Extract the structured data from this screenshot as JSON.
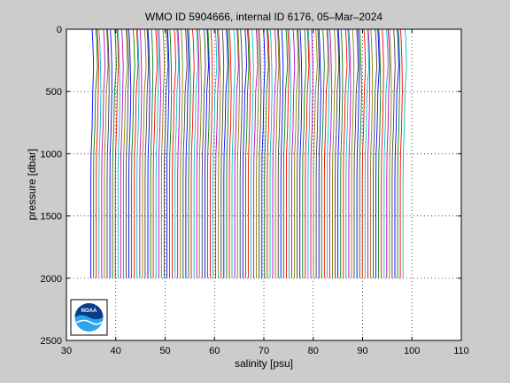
{
  "chart_data": {
    "type": "line",
    "title": "WMO ID 5904666, internal ID 6176, 05–Mar–2024",
    "xlabel": "salinity [psu]",
    "ylabel": "pressure [dbar]",
    "xlim": [
      30,
      110
    ],
    "ylim": [
      0,
      2500
    ],
    "y_reversed": true,
    "grid": "dotted",
    "xticks": [
      "30",
      "40",
      "50",
      "60",
      "70",
      "80",
      "90",
      "100",
      "110"
    ],
    "yticks": [
      "0",
      "500",
      "1000",
      "1500",
      "2000",
      "2500"
    ],
    "profile_offset_step": 0.55,
    "series": [
      {
        "values": [
          [
            35.2,
            0
          ],
          [
            35.35,
            100
          ],
          [
            35.5,
            300
          ],
          [
            35.35,
            500
          ],
          [
            35.2,
            800
          ],
          [
            35.0,
            1000
          ],
          [
            34.95,
            1200
          ],
          [
            34.95,
            1500
          ],
          [
            34.95,
            2000
          ]
        ]
      }
    ],
    "logo": {
      "text": "NOAA",
      "colors": [
        "#0a3c8c",
        "#2aa7ea",
        "#ffffff"
      ]
    }
  }
}
